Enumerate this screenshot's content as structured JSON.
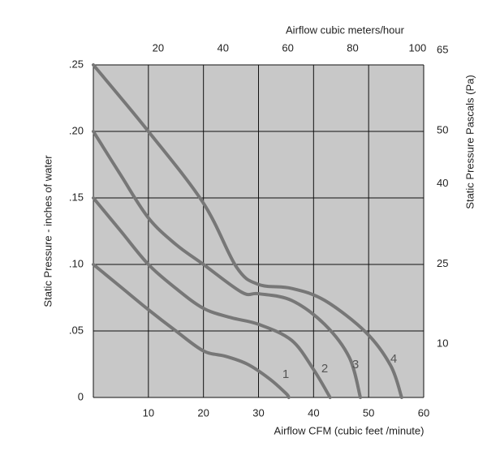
{
  "chart_data": {
    "type": "line",
    "xlabel": "Airflow  CFM (cubic feet /minute)",
    "ylabel": "Static Pressure - inches of water",
    "x2label": "Airflow cubic meters/hour",
    "y2label": "Static Pressure Pascals (Pa)",
    "xlim": [
      0,
      60
    ],
    "xticks": [
      10,
      20,
      30,
      40,
      50,
      60
    ],
    "ylim": [
      0,
      0.25
    ],
    "yticks": [
      0,
      {
        "value": 0.05,
        "label": ".05"
      },
      {
        "value": 0.1,
        "label": ".10"
      },
      {
        "value": 0.15,
        "label": ".15"
      },
      {
        "value": 0.2,
        "label": ".20"
      },
      {
        "value": 0.25,
        "label": ".25"
      }
    ],
    "x2lim": [
      0,
      101.9
    ],
    "x2ticks": [
      20,
      40,
      60,
      80,
      100
    ],
    "y2lim": [
      0,
      62.3
    ],
    "y2ticks": [
      10,
      25,
      40,
      50,
      65
    ],
    "grid": true,
    "background": "#c8c8c8",
    "series": [
      {
        "name": "1",
        "color": "#777777",
        "x": [
          0,
          5,
          10,
          15,
          20,
          24,
          28,
          32,
          35,
          35.5
        ],
        "values": [
          0.1,
          0.083,
          0.066,
          0.05,
          0.035,
          0.031,
          0.025,
          0.014,
          0.003,
          0
        ]
      },
      {
        "name": "2",
        "color": "#777777",
        "x": [
          0,
          5,
          10,
          15,
          20,
          25,
          30,
          36,
          40,
          43
        ],
        "values": [
          0.15,
          0.125,
          0.1,
          0.082,
          0.067,
          0.06,
          0.055,
          0.043,
          0.021,
          0
        ]
      },
      {
        "name": "3",
        "color": "#777777",
        "x": [
          0,
          5,
          10,
          15,
          20,
          27,
          30,
          36,
          42,
          46.5,
          48.5
        ],
        "values": [
          0.2,
          0.167,
          0.135,
          0.115,
          0.1,
          0.079,
          0.078,
          0.073,
          0.055,
          0.03,
          0
        ]
      },
      {
        "name": "4",
        "color": "#777777",
        "x": [
          0,
          10,
          20,
          26,
          30,
          36,
          42,
          49.5,
          54,
          56
        ],
        "values": [
          0.25,
          0.2,
          0.146,
          0.098,
          0.085,
          0.082,
          0.073,
          0.049,
          0.024,
          0
        ]
      }
    ]
  }
}
